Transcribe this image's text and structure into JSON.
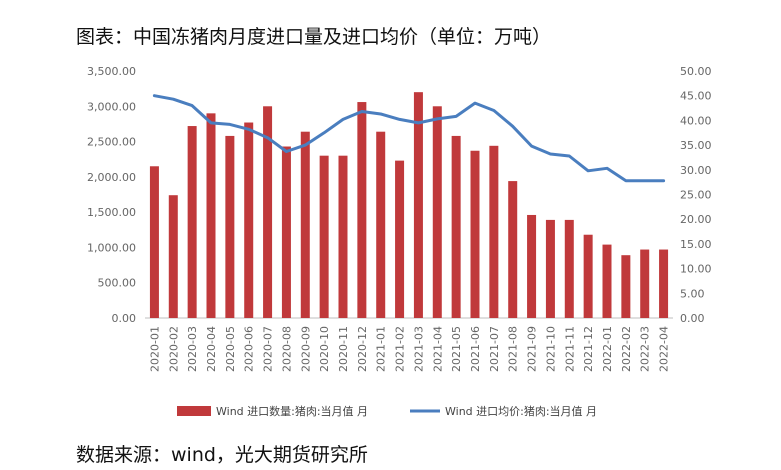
{
  "header": {
    "title": "图表：中国冻猪肉月度进口量及进口均价（单位：万吨）"
  },
  "footer": {
    "source": "数据来源：wind，光大期货研究所"
  },
  "chart_data": {
    "type": "bar",
    "title": "图表：中国冻猪肉月度进口量及进口均价（单位：万吨）",
    "categories": [
      "2020-01",
      "2020-02",
      "2020-03",
      "2020-04",
      "2020-05",
      "2020-06",
      "2020-07",
      "2020-08",
      "2020-09",
      "2020-10",
      "2020-11",
      "2020-12",
      "2021-01",
      "2021-02",
      "2021-03",
      "2021-04",
      "2021-05",
      "2021-06",
      "2021-07",
      "2021-08",
      "2021-09",
      "2021-10",
      "2021-11",
      "2021-12",
      "2022-01",
      "2022-02",
      "2022-03",
      "2022-04"
    ],
    "series": [
      {
        "name": "Wind 进口数量:猪肉:当月值 月",
        "type": "bar",
        "axis": "left",
        "color": "#c0393b",
        "values": [
          2150,
          1740,
          2720,
          2900,
          2580,
          2770,
          3000,
          2430,
          2640,
          2300,
          2300,
          3060,
          2640,
          2230,
          3200,
          3000,
          2580,
          2370,
          2440,
          1940,
          1460,
          1390,
          1390,
          1180,
          1040,
          890,
          970,
          970
        ]
      },
      {
        "name": "Wind 进口均价:猪肉:当月值 月",
        "type": "line",
        "axis": "right",
        "color": "#4a7ebf",
        "values": [
          45.0,
          44.3,
          43.0,
          39.5,
          39.2,
          38.2,
          36.5,
          33.7,
          35.0,
          37.5,
          40.2,
          41.8,
          41.3,
          40.2,
          39.5,
          40.3,
          40.8,
          43.5,
          42.0,
          38.8,
          34.8,
          33.2,
          32.8,
          29.8,
          30.3,
          27.8,
          27.8,
          27.8
        ]
      }
    ],
    "y_left": {
      "min": 0,
      "max": 3500,
      "ticks": [
        "0.00",
        "500.00",
        "1,000.00",
        "1,500.00",
        "2,000.00",
        "2,500.00",
        "3,000.00",
        "3,500.00"
      ]
    },
    "y_right": {
      "min": 0,
      "max": 50,
      "ticks": [
        "0.00",
        "5.00",
        "10.00",
        "15.00",
        "20.00",
        "25.00",
        "30.00",
        "35.00",
        "40.00",
        "45.00",
        "50.00"
      ]
    },
    "legend_position": "bottom",
    "grid": false
  }
}
